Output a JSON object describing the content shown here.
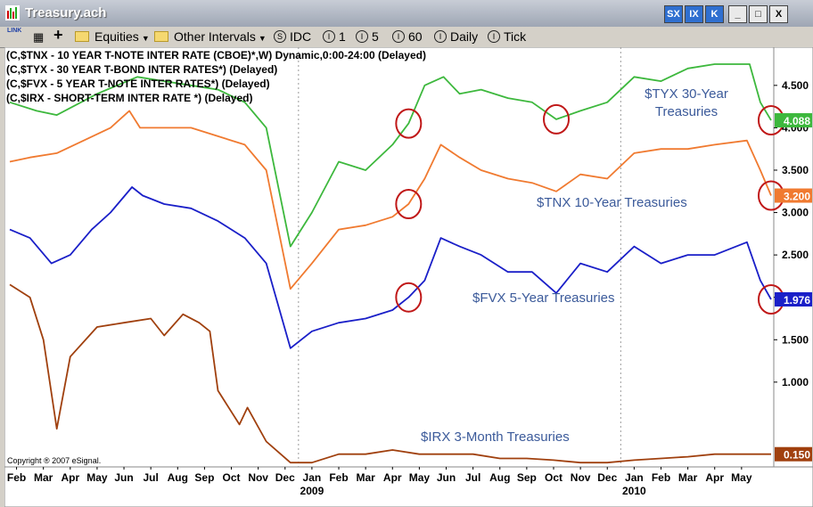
{
  "window": {
    "title": "Treasury.ach",
    "controls": [
      "SX",
      "IX",
      "K",
      "_",
      "□",
      "X"
    ]
  },
  "toolbar": {
    "link_label": "LINK",
    "equities_label": "Equities",
    "intervals_label": "Other Intervals",
    "idc_label": "IDC",
    "interval_1": "1",
    "interval_5": "5",
    "interval_60": "60",
    "daily_label": "Daily",
    "tick_label": "Tick"
  },
  "chart_data": {
    "type": "line",
    "legend_lines": [
      "(C,$TNX - 10 YEAR T-NOTE INTER RATE (CBOE)*,W) Dynamic,0:00-24:00 (Delayed)",
      "(C,$TYX - 30 YEAR T-BOND INTER RATES*)  (Delayed)",
      "(C,$FVX - 5 YEAR T-NOTE INTER RATES*)  (Delayed)",
      "(C,$IRX - SHORT-TERM INTER RATE *)  (Delayed)"
    ],
    "copyright": "Copyright ® 2007 eSignal.",
    "x_labels": [
      "Feb",
      "Mar",
      "Apr",
      "May",
      "Jun",
      "Jul",
      "Aug",
      "Sep",
      "Oct",
      "Nov",
      "Dec",
      "Jan",
      "Feb",
      "Mar",
      "Apr",
      "May",
      "Jun",
      "Jul",
      "Aug",
      "Sep",
      "Oct",
      "Nov",
      "Dec",
      "Jan",
      "Feb",
      "Mar",
      "Apr",
      "May"
    ],
    "year_labels": [
      {
        "label": "2009",
        "month_index": 11
      },
      {
        "label": "2010",
        "month_index": 23
      }
    ],
    "x_range": [
      -0.45,
      28.2
    ],
    "y_ticks": [
      "1.000",
      "1.500",
      "2.000",
      "2.500",
      "3.000",
      "3.500",
      "4.000",
      "4.500"
    ],
    "ylim": [
      0.0,
      4.95
    ],
    "grid": false,
    "series": [
      {
        "name": "$TYX 30-Year Treasuries",
        "color": "#3db83d",
        "last_value": "4.088",
        "values": [
          [
            -0.25,
            4.3
          ],
          [
            0.75,
            4.2
          ],
          [
            1.5,
            4.15
          ],
          [
            3,
            4.4
          ],
          [
            4.5,
            4.6
          ],
          [
            5.5,
            4.55
          ],
          [
            6.5,
            4.5
          ],
          [
            7.5,
            4.45
          ],
          [
            8.5,
            4.3
          ],
          [
            9.3,
            4.0
          ],
          [
            10.2,
            2.6
          ],
          [
            11.0,
            3.0
          ],
          [
            12.0,
            3.6
          ],
          [
            13.0,
            3.5
          ],
          [
            14.0,
            3.8
          ],
          [
            14.6,
            4.05
          ],
          [
            15.2,
            4.5
          ],
          [
            15.9,
            4.6
          ],
          [
            16.5,
            4.4
          ],
          [
            17.3,
            4.45
          ],
          [
            18.3,
            4.35
          ],
          [
            19.2,
            4.3
          ],
          [
            20.1,
            4.1
          ],
          [
            21.0,
            4.2
          ],
          [
            22.0,
            4.3
          ],
          [
            23.0,
            4.6
          ],
          [
            24.0,
            4.55
          ],
          [
            25.0,
            4.7
          ],
          [
            26.0,
            4.75
          ],
          [
            27.3,
            4.75
          ],
          [
            27.7,
            4.3
          ],
          [
            28.1,
            4.088
          ]
        ]
      },
      {
        "name": "$TNX 10-Year Treasuries",
        "color": "#f07a30",
        "last_value": "3.200",
        "values": [
          [
            -0.25,
            3.6
          ],
          [
            0.5,
            3.65
          ],
          [
            1.5,
            3.7
          ],
          [
            2.5,
            3.85
          ],
          [
            3.5,
            4.0
          ],
          [
            4.2,
            4.2
          ],
          [
            4.6,
            4.0
          ],
          [
            5.5,
            4.0
          ],
          [
            6.5,
            4.0
          ],
          [
            7.5,
            3.9
          ],
          [
            8.5,
            3.8
          ],
          [
            9.3,
            3.5
          ],
          [
            10.2,
            2.1
          ],
          [
            11.0,
            2.4
          ],
          [
            12.0,
            2.8
          ],
          [
            13.0,
            2.85
          ],
          [
            14.0,
            2.95
          ],
          [
            14.6,
            3.1
          ],
          [
            15.2,
            3.4
          ],
          [
            15.8,
            3.8
          ],
          [
            16.5,
            3.65
          ],
          [
            17.3,
            3.5
          ],
          [
            18.3,
            3.4
          ],
          [
            19.2,
            3.35
          ],
          [
            20.1,
            3.25
          ],
          [
            21.0,
            3.45
          ],
          [
            22.0,
            3.4
          ],
          [
            23.0,
            3.7
          ],
          [
            24.0,
            3.75
          ],
          [
            25.0,
            3.75
          ],
          [
            26.0,
            3.8
          ],
          [
            27.2,
            3.85
          ],
          [
            27.7,
            3.5
          ],
          [
            28.1,
            3.2
          ]
        ]
      },
      {
        "name": "$FVX 5-Year Treasuries",
        "color": "#1a1fc8",
        "last_value": "1.976",
        "values": [
          [
            -0.25,
            2.8
          ],
          [
            0.5,
            2.7
          ],
          [
            1.3,
            2.4
          ],
          [
            2.0,
            2.5
          ],
          [
            2.8,
            2.8
          ],
          [
            3.5,
            3.0
          ],
          [
            4.3,
            3.3
          ],
          [
            4.7,
            3.2
          ],
          [
            5.5,
            3.1
          ],
          [
            6.5,
            3.05
          ],
          [
            7.5,
            2.9
          ],
          [
            8.5,
            2.7
          ],
          [
            9.3,
            2.4
          ],
          [
            10.2,
            1.4
          ],
          [
            11.0,
            1.6
          ],
          [
            12.0,
            1.7
          ],
          [
            13.0,
            1.75
          ],
          [
            14.0,
            1.85
          ],
          [
            14.6,
            2.0
          ],
          [
            15.2,
            2.2
          ],
          [
            15.8,
            2.7
          ],
          [
            16.5,
            2.6
          ],
          [
            17.3,
            2.5
          ],
          [
            18.3,
            2.3
          ],
          [
            19.2,
            2.3
          ],
          [
            20.1,
            2.05
          ],
          [
            21.0,
            2.4
          ],
          [
            22.0,
            2.3
          ],
          [
            23.0,
            2.6
          ],
          [
            24.0,
            2.4
          ],
          [
            25.0,
            2.5
          ],
          [
            26.0,
            2.5
          ],
          [
            27.2,
            2.65
          ],
          [
            27.7,
            2.2
          ],
          [
            28.1,
            1.976
          ]
        ]
      },
      {
        "name": "$IRX 3-Month Treasuries",
        "color": "#a0400e",
        "last_value": "0.150",
        "values": [
          [
            -0.25,
            2.15
          ],
          [
            0.5,
            2.0
          ],
          [
            1.0,
            1.5
          ],
          [
            1.5,
            0.45
          ],
          [
            2.0,
            1.3
          ],
          [
            3.0,
            1.65
          ],
          [
            4.0,
            1.7
          ],
          [
            5.0,
            1.75
          ],
          [
            5.5,
            1.55
          ],
          [
            6.2,
            1.8
          ],
          [
            6.8,
            1.7
          ],
          [
            7.2,
            1.6
          ],
          [
            7.5,
            0.9
          ],
          [
            8.3,
            0.5
          ],
          [
            8.6,
            0.7
          ],
          [
            9.3,
            0.3
          ],
          [
            10.2,
            0.05
          ],
          [
            11.0,
            0.05
          ],
          [
            12.0,
            0.15
          ],
          [
            13.0,
            0.15
          ],
          [
            14.0,
            0.2
          ],
          [
            15.0,
            0.15
          ],
          [
            16.0,
            0.15
          ],
          [
            17.0,
            0.15
          ],
          [
            18.0,
            0.1
          ],
          [
            19.0,
            0.1
          ],
          [
            20.0,
            0.08
          ],
          [
            21.0,
            0.05
          ],
          [
            22.0,
            0.05
          ],
          [
            23.0,
            0.08
          ],
          [
            24.0,
            0.1
          ],
          [
            25.0,
            0.12
          ],
          [
            26.0,
            0.15
          ],
          [
            27.2,
            0.15
          ],
          [
            28.1,
            0.15
          ]
        ]
      }
    ],
    "annotations": {
      "TYX": "$TYX 30-Year Treasuries",
      "TNX": "$TNX 10-Year Treasuries",
      "FVX": "$FVX 5-Year Treasuries",
      "IRX": "$IRX 3-Month Treasuries"
    },
    "highlight_circles": [
      {
        "series": "TYX",
        "x": 14.6
      },
      {
        "series": "TYX",
        "x": 20.1
      },
      {
        "series": "TYX",
        "x": 28.1
      },
      {
        "series": "TNX",
        "x": 14.6
      },
      {
        "series": "TNX",
        "x": 28.1
      },
      {
        "series": "FVX",
        "x": 14.6
      },
      {
        "series": "FVX",
        "x": 28.1
      }
    ]
  }
}
